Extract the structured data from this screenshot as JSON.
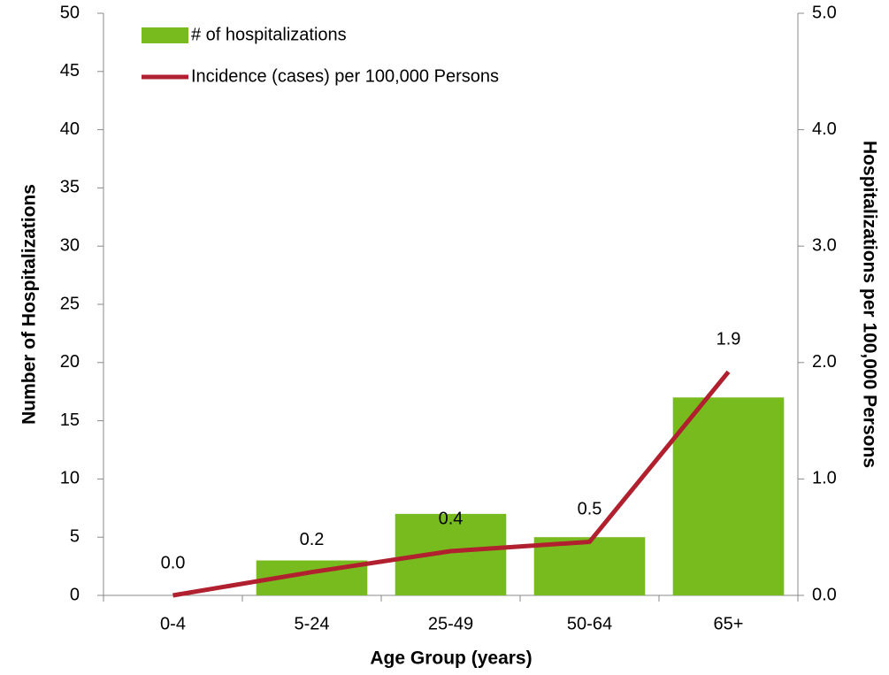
{
  "chart_data": {
    "type": "bar",
    "x_label": "Age Group (years)",
    "y_label": "Number of Hospitalizations",
    "y2_label": "Hospitalizations per 100,000 Persons",
    "categories": [
      "0-4",
      "5-24",
      "25-49",
      "50-64",
      "65+"
    ],
    "series": [
      {
        "name": "# of hospitalizations",
        "type": "bar",
        "color": "#78bb1e",
        "values": [
          0,
          3,
          7,
          5,
          17
        ]
      },
      {
        "name": "Incidence (cases) per 100,000 Persons",
        "type": "line",
        "axis": "y2",
        "color": "#b0202e",
        "values": [
          0,
          0.2,
          0.38,
          0.46,
          1.92
        ],
        "value_labels": [
          "0.0",
          "0.2",
          "0.4",
          "0.5",
          "1.9"
        ]
      }
    ],
    "ylim": [
      0,
      50
    ],
    "yticks": [
      0,
      5,
      10,
      15,
      20,
      25,
      30,
      35,
      40,
      45,
      50
    ],
    "y2lim": [
      0,
      5
    ],
    "y2ticks": [
      {
        "value": 0,
        "label": "0.0"
      },
      {
        "value": 1,
        "label": "1.0"
      },
      {
        "value": 2,
        "label": "2.0"
      },
      {
        "value": 3,
        "label": "3.0"
      },
      {
        "value": 4,
        "label": "4.0"
      },
      {
        "value": 5,
        "label": "5.0"
      }
    ],
    "legend": "upper-left"
  }
}
